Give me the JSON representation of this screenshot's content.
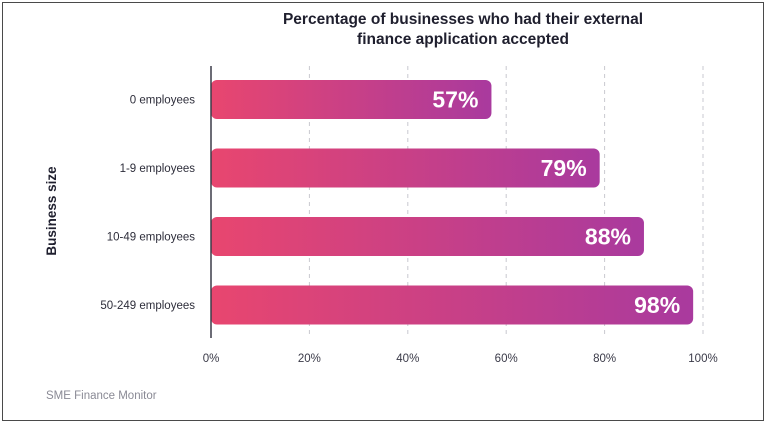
{
  "chart_data": {
    "type": "bar",
    "orientation": "horizontal",
    "title": "Percentage of businesses who had their external finance application accepted",
    "title_lines": [
      "Percentage of businesses who had their external",
      "finance application accepted"
    ],
    "ylabel": "Business size",
    "xlabel": "",
    "categories": [
      "0 employees",
      "1-9 employees",
      "10-49 employees",
      "50-249 employees"
    ],
    "values": [
      57,
      79,
      88,
      98
    ],
    "value_labels": [
      "57%",
      "79%",
      "88%",
      "98%"
    ],
    "xlim": [
      0,
      100
    ],
    "x_ticks": [
      0,
      20,
      40,
      60,
      80,
      100
    ],
    "x_tick_labels": [
      "0%",
      "20%",
      "40%",
      "60%",
      "80%",
      "100%"
    ],
    "grid": "vertical dashed",
    "bar_gradient": [
      "#e8466f",
      "#a93a9e"
    ],
    "source": "SME Finance Monitor"
  }
}
